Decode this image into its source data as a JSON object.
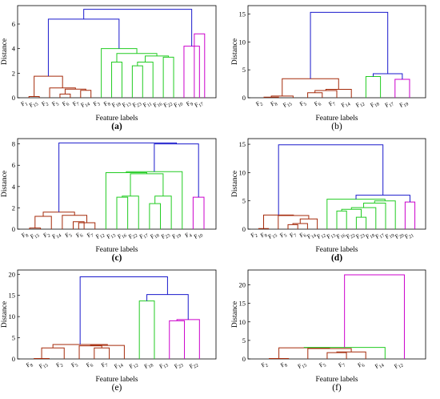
{
  "colors": {
    "brown": "#a52a0a",
    "green": "#22cc22",
    "magenta": "#cc00cc",
    "blue": "#1a1acc",
    "axis": "#000000",
    "red_tick": "#ff0000"
  },
  "chart_data": [
    {
      "panel": "(a)",
      "caption_text": "(a)",
      "caption_bold": true,
      "type": "dendrogram",
      "xlabel": "Feature labels",
      "ylabel": "Distance",
      "ylim": [
        0,
        7.5
      ],
      "yticks": [
        0,
        2,
        4,
        6
      ],
      "leaves": [
        "F1",
        "F15",
        "F2",
        "F5",
        "F6",
        "F7",
        "F14",
        "F3",
        "F8",
        "F18",
        "F13",
        "F23",
        "F11",
        "F16",
        "F22",
        "F10",
        "F9",
        "F17"
      ],
      "links": [
        {
          "a": 3,
          "b": 4,
          "h": 0.3,
          "color": "brown"
        },
        {
          "a": 0,
          "b": 1,
          "h": 0.1,
          "color": "brown"
        },
        {
          "a": 5,
          "b": 6,
          "h": 0.6,
          "color": "brown"
        },
        {
          "a": 3.5,
          "b": 5.5,
          "h": 0.7,
          "color": "brown"
        },
        {
          "a": 2,
          "b": 4.5,
          "h": 0.8,
          "color": "brown"
        },
        {
          "a": 0.5,
          "b": 3.25,
          "h": 1.75,
          "color": "brown"
        },
        {
          "a": 10,
          "b": 11,
          "h": 2.6,
          "color": "green"
        },
        {
          "a": 12,
          "b": 10.5,
          "h": 2.9,
          "color": "green"
        },
        {
          "a": 13,
          "b": 14,
          "h": 3.3,
          "color": "green"
        },
        {
          "a": 11.25,
          "b": 13.5,
          "h": 3.4,
          "color": "green"
        },
        {
          "a": 8,
          "b": 9,
          "h": 2.9,
          "color": "green"
        },
        {
          "a": 8.5,
          "b": 12.375,
          "h": 3.6,
          "color": "green"
        },
        {
          "a": 7,
          "b": 10.44,
          "h": 4.0,
          "color": "green"
        },
        {
          "a": 1.875,
          "b": 8.72,
          "h": 6.4,
          "color": "blue"
        },
        {
          "a": 16,
          "b": 17,
          "h": 5.2,
          "color": "magenta"
        },
        {
          "a": 15,
          "b": 16.5,
          "h": 4.2,
          "color": "magenta"
        },
        {
          "a": 5.3,
          "b": 15.75,
          "h": 7.2,
          "color": "blue"
        }
      ]
    },
    {
      "panel": "(b)",
      "caption_text": "(b)",
      "caption_bold": false,
      "type": "dendrogram",
      "xlabel": "Feature labels",
      "ylabel": "Distance",
      "ylim": [
        0,
        16.5
      ],
      "yticks": [
        0,
        5,
        10,
        15
      ],
      "leaves": [
        "F2",
        "F8",
        "F15",
        "F5",
        "F6",
        "F7",
        "F14",
        "F12",
        "F18",
        "F17",
        "F19"
      ],
      "links": [
        {
          "a": 0,
          "b": 1,
          "h": 0.1,
          "color": "brown"
        },
        {
          "a": 3,
          "b": 4,
          "h": 0.9,
          "color": "brown"
        },
        {
          "a": 5,
          "b": 3.5,
          "h": 1.3,
          "color": "brown"
        },
        {
          "a": 4.25,
          "b": 6,
          "h": 1.5,
          "color": "brown"
        },
        {
          "a": 0.5,
          "b": 2,
          "h": 0.3,
          "color": "brown"
        },
        {
          "a": 1.25,
          "b": 5.125,
          "h": 3.4,
          "color": "brown"
        },
        {
          "a": 7,
          "b": 8,
          "h": 3.8,
          "color": "green"
        },
        {
          "a": 9,
          "b": 10,
          "h": 3.3,
          "color": "magenta"
        },
        {
          "a": 7.5,
          "b": 9.5,
          "h": 4.3,
          "color": "blue"
        },
        {
          "a": 3.19,
          "b": 8.5,
          "h": 15.3,
          "color": "blue"
        }
      ]
    },
    {
      "panel": "(c)",
      "caption_text": "(c)",
      "caption_bold": true,
      "type": "dendrogram",
      "xlabel": "Feature labels",
      "ylabel": "Distance",
      "ylim": [
        0,
        8.5
      ],
      "yticks": [
        0,
        2,
        4,
        6,
        8
      ],
      "leaves": [
        "F8",
        "F15",
        "F2",
        "F14",
        "F5",
        "F6",
        "F7",
        "F12",
        "F13",
        "F16",
        "F22",
        "F17",
        "F18",
        "F23",
        "F19",
        "F4",
        "F10"
      ],
      "links": [
        {
          "a": 0,
          "b": 1,
          "h": 0.1,
          "color": "brown"
        },
        {
          "a": 2,
          "b": 0.5,
          "h": 1.2,
          "color": "brown"
        },
        {
          "a": 4,
          "b": 5,
          "h": 0.7,
          "color": "brown"
        },
        {
          "a": 4.5,
          "b": 6,
          "h": 0.6,
          "color": "brown"
        },
        {
          "a": 3,
          "b": 5.25,
          "h": 1.3,
          "color": "brown"
        },
        {
          "a": 1.25,
          "b": 4.125,
          "h": 1.6,
          "color": "brown"
        },
        {
          "a": 8,
          "b": 9,
          "h": 3.0,
          "color": "green"
        },
        {
          "a": 10,
          "b": 8.5,
          "h": 3.1,
          "color": "green"
        },
        {
          "a": 11,
          "b": 12,
          "h": 2.4,
          "color": "green"
        },
        {
          "a": 13,
          "b": 11.5,
          "h": 3.1,
          "color": "green"
        },
        {
          "a": 9.25,
          "b": 12.25,
          "h": 5.2,
          "color": "green"
        },
        {
          "a": 7,
          "b": 10.75,
          "h": 5.3,
          "color": "green"
        },
        {
          "a": 8.875,
          "b": 14,
          "h": 5.4,
          "color": "green"
        },
        {
          "a": 15,
          "b": 16,
          "h": 3.0,
          "color": "magenta"
        },
        {
          "a": 11.44,
          "b": 15.5,
          "h": 8.0,
          "color": "blue"
        },
        {
          "a": 2.69,
          "b": 13.47,
          "h": 8.1,
          "color": "blue"
        }
      ]
    },
    {
      "panel": "(d)",
      "caption_text": "(d)",
      "caption_bold": true,
      "type": "dendrogram",
      "xlabel": "Feature labels",
      "ylabel": "Distance",
      "ylim": [
        0,
        16
      ],
      "yticks": [
        0,
        5,
        10,
        15
      ],
      "leaves": [
        "F2",
        "F8",
        "F15",
        "F5",
        "F7",
        "F6",
        "F14",
        "F12",
        "F13",
        "F16",
        "F22",
        "F23",
        "F18",
        "F17",
        "F19",
        "F20",
        "F21"
      ],
      "links": [
        {
          "a": 0,
          "b": 1,
          "h": 0.1,
          "color": "brown"
        },
        {
          "a": 3,
          "b": 4,
          "h": 0.8,
          "color": "brown"
        },
        {
          "a": 5,
          "b": 3.5,
          "h": 1.0,
          "color": "brown"
        },
        {
          "a": 4.25,
          "b": 6,
          "h": 1.8,
          "color": "brown"
        },
        {
          "a": 2,
          "b": 5.125,
          "h": 2.4,
          "color": "brown"
        },
        {
          "a": 0.5,
          "b": 3.56,
          "h": 2.5,
          "color": "brown"
        },
        {
          "a": 8,
          "b": 9,
          "h": 3.2,
          "color": "green"
        },
        {
          "a": 10,
          "b": 11,
          "h": 2.1,
          "color": "green"
        },
        {
          "a": 8.5,
          "b": 10.5,
          "h": 3.5,
          "color": "green"
        },
        {
          "a": 12,
          "b": 9.5,
          "h": 3.8,
          "color": "green"
        },
        {
          "a": 10.75,
          "b": 13,
          "h": 4.6,
          "color": "green"
        },
        {
          "a": 11.875,
          "b": 14,
          "h": 5.0,
          "color": "green"
        },
        {
          "a": 7,
          "b": 12.94,
          "h": 5.3,
          "color": "green"
        },
        {
          "a": 15,
          "b": 16,
          "h": 4.8,
          "color": "magenta"
        },
        {
          "a": 9.97,
          "b": 15.5,
          "h": 6.0,
          "color": "blue"
        },
        {
          "a": 2.03,
          "b": 12.73,
          "h": 14.9,
          "color": "blue"
        }
      ]
    },
    {
      "panel": "(e)",
      "caption_text": "(e)",
      "caption_bold": false,
      "type": "dendrogram",
      "xlabel": "Feature labels",
      "ylabel": "Distance",
      "ylim": [
        0,
        21
      ],
      "yticks": [
        0,
        5,
        10,
        15,
        20
      ],
      "leaves": [
        "F8",
        "F15",
        "F2",
        "F5",
        "F6",
        "F7",
        "F14",
        "F12",
        "F18",
        "F13",
        "F23",
        "F22"
      ],
      "links": [
        {
          "a": 0,
          "b": 1,
          "h": 0.1,
          "color": "brown"
        },
        {
          "a": 0.5,
          "b": 2,
          "h": 2.6,
          "color": "brown"
        },
        {
          "a": 4,
          "b": 5,
          "h": 2.6,
          "color": "brown"
        },
        {
          "a": 3,
          "b": 4.5,
          "h": 3.1,
          "color": "brown"
        },
        {
          "a": 3.75,
          "b": 6,
          "h": 3.2,
          "color": "brown"
        },
        {
          "a": 1.25,
          "b": 4.875,
          "h": 3.4,
          "color": "brown"
        },
        {
          "a": 7,
          "b": 8,
          "h": 13.7,
          "color": "green"
        },
        {
          "a": 9,
          "b": 10,
          "h": 9.0,
          "color": "magenta"
        },
        {
          "a": 9.5,
          "b": 11,
          "h": 9.3,
          "color": "magenta"
        },
        {
          "a": 7.5,
          "b": 10.25,
          "h": 15.2,
          "color": "blue"
        },
        {
          "a": 3.06,
          "b": 8.875,
          "h": 19.4,
          "color": "blue"
        }
      ]
    },
    {
      "panel": "(f)",
      "caption_text": "(f)",
      "caption_bold": false,
      "type": "dendrogram",
      "xlabel": "Feature labels",
      "ylabel": "Distance",
      "ylim": [
        0,
        24
      ],
      "yticks": [
        0,
        5,
        10,
        15,
        20
      ],
      "leaves": [
        "F2",
        "F8",
        "F15",
        "F5",
        "F7",
        "F6",
        "F14",
        "F12"
      ],
      "links": [
        {
          "a": 0,
          "b": 1,
          "h": 0.1,
          "color": "brown"
        },
        {
          "a": 3,
          "b": 4,
          "h": 1.7,
          "color": "brown"
        },
        {
          "a": 3.5,
          "b": 5,
          "h": 1.9,
          "color": "brown"
        },
        {
          "a": 2,
          "b": 4.25,
          "h": 2.8,
          "color": "brown"
        },
        {
          "a": 0.5,
          "b": 3.125,
          "h": 3.0,
          "color": "brown"
        },
        {
          "a": 1.81,
          "b": 6,
          "h": 3.1,
          "color": "green"
        },
        {
          "a": 3.9,
          "b": 7,
          "h": 22.7,
          "color": "magenta"
        }
      ]
    }
  ]
}
